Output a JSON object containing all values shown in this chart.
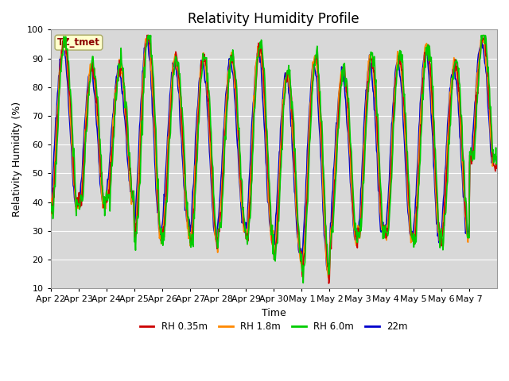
{
  "title": "Relativity Humidity Profile",
  "xlabel": "Time",
  "ylabel": "Relativity Humidity (%)",
  "ylim": [
    10,
    100
  ],
  "yticks": [
    10,
    20,
    30,
    40,
    50,
    60,
    70,
    80,
    90,
    100
  ],
  "xtick_labels": [
    "Apr 22",
    "Apr 23",
    "Apr 24",
    "Apr 25",
    "Apr 26",
    "Apr 27",
    "Apr 28",
    "Apr 29",
    "Apr 30",
    "May 1",
    "May 2",
    "May 3",
    "May 4",
    "May 5",
    "May 6",
    "May 7"
  ],
  "colors": {
    "RH 0.35m": "#cc0000",
    "RH 1.8m": "#ff8800",
    "RH 6.0m": "#00cc00",
    "22m": "#0000cc"
  },
  "annotation_text": "TZ_tmet",
  "annotation_color": "#8b0000",
  "annotation_bg": "#ffffcc",
  "fig_facecolor": "#ffffff",
  "plot_bg": "#d8d8d8",
  "grid_color": "#ffffff",
  "title_fontsize": 12,
  "axis_fontsize": 9,
  "tick_fontsize": 8,
  "line_width": 1.2
}
